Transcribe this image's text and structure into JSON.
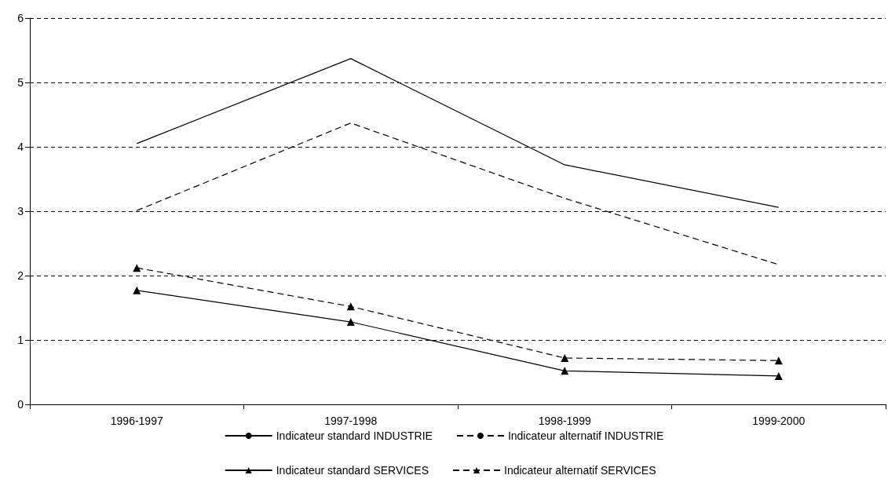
{
  "chart_data": {
    "type": "line",
    "categories": [
      "1996-1997",
      "1997-1998",
      "1998-1999",
      "1999-2000"
    ],
    "series": [
      {
        "name": "Indicateur standard INDUSTRIE",
        "color": "#000000",
        "values": [
          4.05,
          5.37,
          3.72,
          3.06
        ],
        "marker": "none",
        "line_style": "solid"
      },
      {
        "name": "Indicateur alternatif INDUSTRIE",
        "color": "#000000",
        "values": [
          3.01,
          4.37,
          3.2,
          2.17
        ],
        "marker": "none",
        "line_style": "dashed"
      },
      {
        "name": "Indicateur standard SERVICES",
        "color": "#000000",
        "values": [
          1.77,
          1.28,
          0.52,
          0.44
        ],
        "marker": "triangle",
        "line_style": "solid"
      },
      {
        "name": "Indicateur alternatif SERVICES",
        "color": "#000000",
        "values": [
          2.12,
          1.52,
          0.72,
          0.68
        ],
        "marker": "triangle",
        "line_style": "dashed"
      }
    ],
    "ylim": [
      0,
      6
    ],
    "yticks": [
      0,
      1,
      2,
      3,
      4,
      5,
      6
    ],
    "grid": "y",
    "legend": "bottom"
  }
}
